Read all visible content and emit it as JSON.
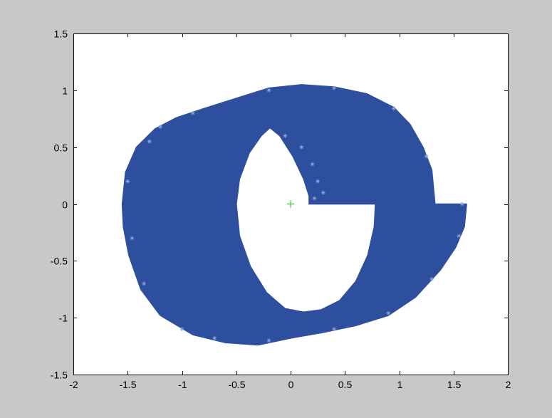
{
  "chart_data": {
    "type": "scatter",
    "title": "",
    "xlabel": "",
    "ylabel": "",
    "xlim": [
      -2,
      2
    ],
    "ylim": [
      -1.5,
      1.5
    ],
    "xticks": [
      -2,
      -1.5,
      -1,
      -0.5,
      0,
      0.5,
      1,
      1.5,
      2
    ],
    "yticks": [
      -1.5,
      -1,
      -0.5,
      0,
      0.5,
      1,
      1.5
    ],
    "xtick_labels": [
      "-2",
      "-1.5",
      "-1",
      "-0.5",
      "0",
      "0.5",
      "1",
      "1.5",
      "2"
    ],
    "ytick_labels": [
      "-1.5",
      "-1",
      "-0.5",
      "0",
      "0.5",
      "1",
      "1.5"
    ],
    "grid": false,
    "legend": "none",
    "series": [
      {
        "marker": "star",
        "color": "#2e4f9e",
        "outer_boundary": [
          [
            -1.55,
            0.0
          ],
          [
            -1.52,
            0.28
          ],
          [
            -1.42,
            0.5
          ],
          [
            -1.25,
            0.66
          ],
          [
            -1.05,
            0.76
          ],
          [
            -0.8,
            0.84
          ],
          [
            -0.5,
            0.93
          ],
          [
            -0.2,
            1.02
          ],
          [
            0.1,
            1.05
          ],
          [
            0.4,
            1.03
          ],
          [
            0.7,
            0.97
          ],
          [
            0.95,
            0.85
          ],
          [
            1.1,
            0.7
          ],
          [
            1.22,
            0.5
          ],
          [
            1.3,
            0.3
          ],
          [
            1.33,
            0.0
          ],
          [
            1.62,
            0.0
          ],
          [
            1.6,
            -0.2
          ],
          [
            1.52,
            -0.38
          ],
          [
            1.38,
            -0.58
          ],
          [
            1.15,
            -0.82
          ],
          [
            0.9,
            -0.98
          ],
          [
            0.6,
            -1.07
          ],
          [
            0.3,
            -1.13
          ],
          [
            0.0,
            -1.18
          ],
          [
            -0.3,
            -1.24
          ],
          [
            -0.6,
            -1.22
          ],
          [
            -0.9,
            -1.15
          ],
          [
            -1.2,
            -0.98
          ],
          [
            -1.38,
            -0.75
          ],
          [
            -1.49,
            -0.45
          ],
          [
            -1.54,
            -0.2
          ],
          [
            -1.55,
            0.0
          ]
        ],
        "inner_boundary": [
          [
            0.78,
            0.0
          ],
          [
            0.77,
            -0.2
          ],
          [
            0.71,
            -0.45
          ],
          [
            0.6,
            -0.68
          ],
          [
            0.45,
            -0.85
          ],
          [
            0.28,
            -0.93
          ],
          [
            0.12,
            -0.95
          ],
          [
            -0.05,
            -0.92
          ],
          [
            -0.22,
            -0.78
          ],
          [
            -0.37,
            -0.55
          ],
          [
            -0.47,
            -0.28
          ],
          [
            -0.5,
            0.0
          ],
          [
            -0.47,
            0.22
          ],
          [
            -0.38,
            0.45
          ],
          [
            -0.27,
            0.6
          ],
          [
            -0.19,
            0.67
          ],
          [
            -0.1,
            0.6
          ],
          [
            0.02,
            0.42
          ],
          [
            0.12,
            0.22
          ],
          [
            0.17,
            0.07
          ],
          [
            0.17,
            0.0
          ],
          [
            0.78,
            0.0
          ]
        ]
      },
      {
        "marker": "plus",
        "color": "#3cc33c",
        "x": [
          0.0
        ],
        "y": [
          0.0
        ]
      }
    ]
  }
}
